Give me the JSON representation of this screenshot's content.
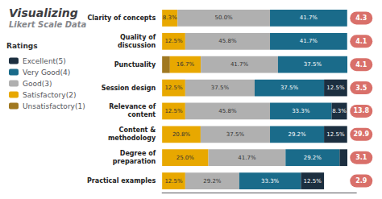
{
  "chart_data": {
    "type": "bar",
    "orientation": "horizontal",
    "stacked": true,
    "data_labels": true,
    "title": "Visualizing",
    "subtitle": "Likert Scale Data",
    "legend_title": "Ratings",
    "legend": "left",
    "grid": false,
    "tick_labels": "y",
    "categories": [
      "Clarity of concepts",
      "Quality of\ndiscussion",
      "Punctuality",
      "Session design",
      "Relevance of\ncontent",
      "Content &\nmethodology",
      "Degree of\npreparation",
      "Practical examples"
    ],
    "xlim": [
      0,
      105
    ],
    "xticks": [],
    "series": [
      {
        "name": "Unsatisfactory(1)",
        "color": "#a07820",
        "values": [
          0,
          0,
          4.2,
          0,
          0,
          0,
          0,
          0
        ],
        "value_labels": [
          null,
          null,
          null,
          null,
          null,
          null,
          null,
          null
        ]
      },
      {
        "name": "Satisfactory(2)",
        "color": "#e8a800",
        "values": [
          8.3,
          12.5,
          16.7,
          12.5,
          12.5,
          20.8,
          25.0,
          12.5
        ],
        "value_labels": [
          "8.3%",
          "12.5%",
          "16.7%",
          "12.5%",
          "12.5%",
          "20.8%",
          "25.0%",
          "12.5%"
        ]
      },
      {
        "name": "Good(3)",
        "color": "#b0b0b0",
        "values": [
          50.0,
          45.8,
          41.7,
          37.5,
          45.8,
          37.5,
          41.7,
          29.2
        ],
        "value_labels": [
          "50.0%",
          "45.8%",
          "41.7%",
          "37.5%",
          "45.8%",
          "37.5%",
          "41.7%",
          "29.2%"
        ]
      },
      {
        "name": "Very Good(4)",
        "color": "#1a6b8a",
        "values": [
          41.7,
          41.7,
          37.5,
          37.5,
          33.3,
          29.2,
          29.2,
          33.3
        ],
        "value_labels": [
          "41.7%",
          "41.7%",
          "37.5%",
          "37.5%",
          "33.3%",
          "29.2%",
          "29.2%",
          "33.3%"
        ]
      },
      {
        "name": "Excellent(5)",
        "color": "#1c2f40",
        "values": [
          0,
          0,
          0,
          12.5,
          8.3,
          12.5,
          4.2,
          12.5
        ],
        "value_labels": [
          null,
          null,
          null,
          "12.5%",
          "8.3%",
          "12.5%",
          null,
          "12.5%"
        ]
      }
    ],
    "bubbles": {
      "values": [
        4.3,
        4.1,
        4.1,
        3.5,
        13.8,
        29.9,
        3.1,
        2.9
      ],
      "color": "#d9706a"
    }
  }
}
